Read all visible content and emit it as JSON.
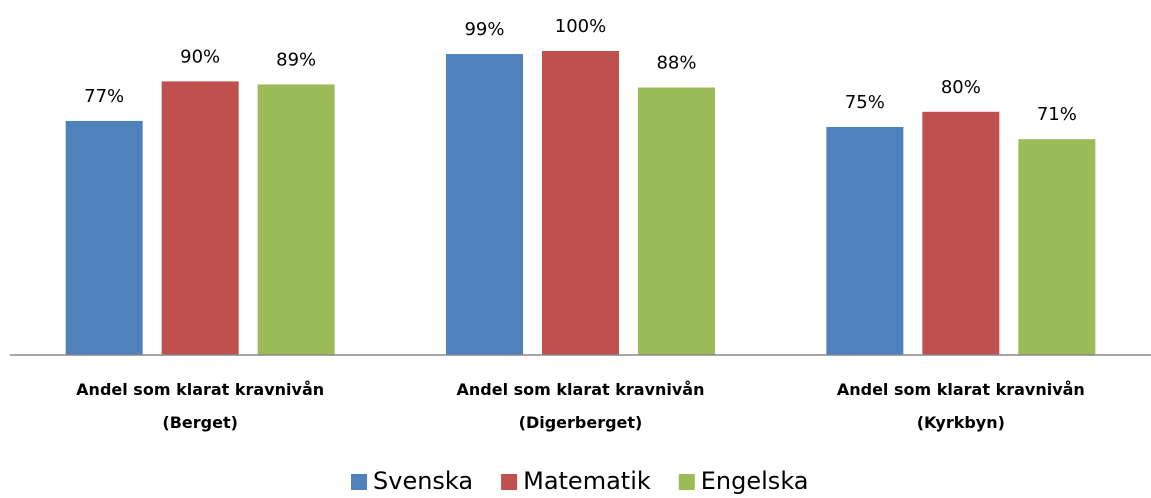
{
  "chart_data": {
    "type": "bar",
    "categories": [
      "Andel som klarat kravnivån\n(Berget)",
      "Andel som klarat kravnivån\n(Digerberget)",
      "Andel som klarat kravnivån\n(Kyrkbyn)"
    ],
    "series": [
      {
        "name": "Svenska",
        "color": "#4f81bd",
        "values": [
          77,
          99,
          75
        ],
        "value_labels": [
          "77%",
          "99%",
          "75%"
        ]
      },
      {
        "name": "Matematik",
        "color": "#c0504d",
        "values": [
          90,
          100,
          80
        ],
        "value_labels": [
          "90%",
          "100%",
          "80%"
        ]
      },
      {
        "name": "Engelska",
        "color": "#9bbb59",
        "values": [
          89,
          88,
          71
        ],
        "value_labels": [
          "89%",
          "88%",
          "71%"
        ]
      }
    ],
    "ylim": [
      0,
      100
    ]
  }
}
